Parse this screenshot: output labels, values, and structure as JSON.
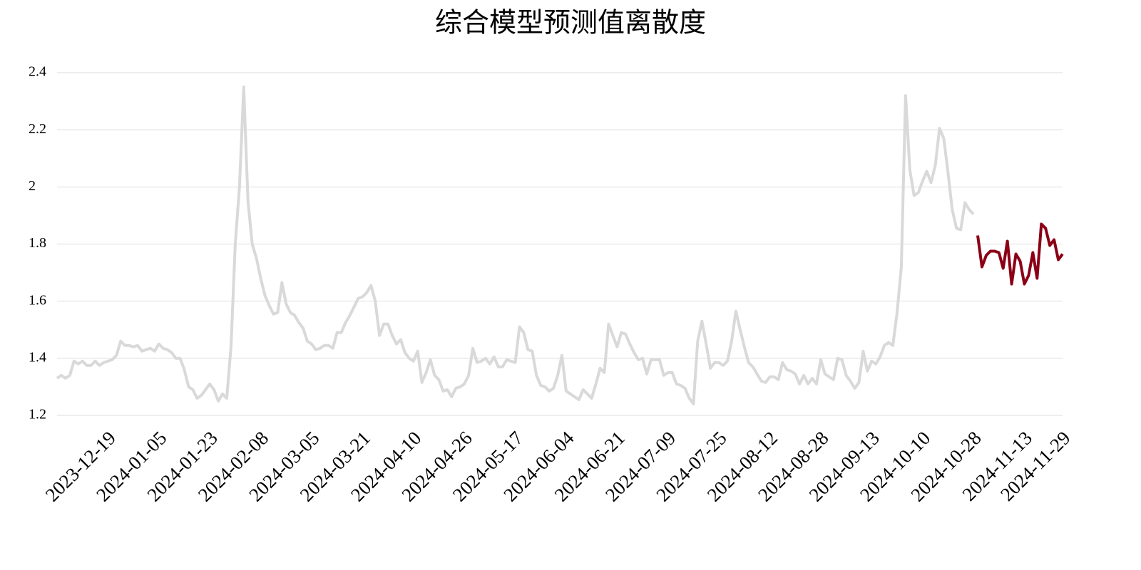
{
  "chart_data": {
    "type": "line",
    "title": "综合模型预测值离散度",
    "categories": [
      null,
      null,
      null,
      null,
      null,
      null,
      null,
      null,
      null,
      null,
      null,
      null,
      "2023-12-19",
      null,
      null,
      null,
      null,
      null,
      null,
      null,
      null,
      null,
      null,
      null,
      "2024-01-05",
      null,
      null,
      null,
      null,
      null,
      null,
      null,
      null,
      null,
      null,
      null,
      "2024-01-23",
      null,
      null,
      null,
      null,
      null,
      null,
      null,
      null,
      null,
      null,
      null,
      "2024-02-08",
      null,
      null,
      null,
      null,
      null,
      null,
      null,
      null,
      null,
      null,
      null,
      "2024-03-05",
      null,
      null,
      null,
      null,
      null,
      null,
      null,
      null,
      null,
      null,
      null,
      "2024-03-21",
      null,
      null,
      null,
      null,
      null,
      null,
      null,
      null,
      null,
      null,
      null,
      "2024-04-10",
      null,
      null,
      null,
      null,
      null,
      null,
      null,
      null,
      null,
      null,
      null,
      "2024-04-26",
      null,
      null,
      null,
      null,
      null,
      null,
      null,
      null,
      null,
      null,
      null,
      "2024-05-17",
      null,
      null,
      null,
      null,
      null,
      null,
      null,
      null,
      null,
      null,
      null,
      "2024-06-04",
      null,
      null,
      null,
      null,
      null,
      null,
      null,
      null,
      null,
      null,
      null,
      "2024-06-21",
      null,
      null,
      null,
      null,
      null,
      null,
      null,
      null,
      null,
      null,
      null,
      "2024-07-09",
      null,
      null,
      null,
      null,
      null,
      null,
      null,
      null,
      null,
      null,
      null,
      "2024-07-25",
      null,
      null,
      null,
      null,
      null,
      null,
      null,
      null,
      null,
      null,
      null,
      "2024-08-12",
      null,
      null,
      null,
      null,
      null,
      null,
      null,
      null,
      null,
      null,
      null,
      "2024-08-28",
      null,
      null,
      null,
      null,
      null,
      null,
      null,
      null,
      null,
      null,
      null,
      "2024-09-13",
      null,
      null,
      null,
      null,
      null,
      null,
      null,
      null,
      null,
      null,
      null,
      "2024-10-10",
      null,
      null,
      null,
      null,
      null,
      null,
      null,
      null,
      null,
      null,
      null,
      "2024-10-28",
      null,
      null,
      null,
      null,
      null,
      null,
      null,
      null,
      null,
      null,
      null,
      "2024-11-13",
      null,
      null,
      null,
      null,
      null,
      null,
      null,
      null,
      "2024-11-29"
    ],
    "series": [
      {
        "color": "#d9d9d9",
        "values": [
          1.33,
          1.34,
          1.33,
          1.34,
          1.39,
          1.38,
          1.39,
          1.375,
          1.375,
          1.39,
          1.375,
          1.385,
          1.39,
          1.395,
          1.41,
          1.46,
          1.445,
          1.445,
          1.44,
          1.445,
          1.425,
          1.43,
          1.435,
          1.425,
          1.45,
          1.435,
          1.43,
          1.42,
          1.4,
          1.4,
          1.36,
          1.3,
          1.29,
          1.26,
          1.27,
          1.29,
          1.31,
          1.29,
          1.25,
          1.275,
          1.26,
          1.44,
          1.8,
          2.0,
          2.35,
          1.95,
          1.8,
          1.75,
          1.68,
          1.62,
          1.585,
          1.555,
          1.56,
          1.665,
          1.59,
          1.56,
          1.55,
          1.525,
          1.505,
          1.46,
          1.45,
          1.43,
          1.435,
          1.445,
          1.445,
          1.435,
          1.49,
          1.49,
          1.525,
          1.55,
          1.58,
          1.61,
          1.615,
          1.63,
          1.655,
          1.6,
          1.48,
          1.52,
          1.52,
          1.48,
          1.45,
          1.465,
          1.42,
          1.4,
          1.39,
          1.425,
          1.315,
          1.35,
          1.395,
          1.34,
          1.325,
          1.285,
          1.29,
          1.265,
          1.295,
          1.3,
          1.31,
          1.34,
          1.435,
          1.385,
          1.39,
          1.4,
          1.38,
          1.405,
          1.37,
          1.37,
          1.395,
          1.39,
          1.385,
          1.51,
          1.49,
          1.43,
          1.425,
          1.34,
          1.305,
          1.3,
          1.285,
          1.295,
          1.34,
          1.41,
          1.285,
          1.275,
          1.265,
          1.255,
          1.29,
          1.275,
          1.26,
          1.31,
          1.365,
          1.35,
          1.52,
          1.48,
          1.44,
          1.49,
          1.485,
          1.45,
          1.42,
          1.395,
          1.4,
          1.345,
          1.395,
          1.395,
          1.395,
          1.34,
          1.35,
          1.35,
          1.31,
          1.305,
          1.295,
          1.26,
          1.24,
          1.46,
          1.53,
          1.45,
          1.365,
          1.385,
          1.385,
          1.375,
          1.39,
          1.46,
          1.565,
          1.5,
          1.44,
          1.385,
          1.37,
          1.345,
          1.32,
          1.315,
          1.335,
          1.335,
          1.325,
          1.385,
          1.36,
          1.355,
          1.345,
          1.31,
          1.34,
          1.31,
          1.33,
          1.31,
          1.395,
          1.345,
          1.335,
          1.325,
          1.4,
          1.395,
          1.34,
          1.32,
          1.295,
          1.315,
          1.425,
          1.355,
          1.39,
          1.38,
          1.405,
          1.445,
          1.455,
          1.445,
          1.56,
          1.72,
          2.32,
          2.06,
          1.97,
          1.98,
          2.02,
          2.055,
          2.015,
          2.075,
          2.205,
          2.17,
          2.05,
          1.92,
          1.855,
          1.85,
          1.945,
          1.92,
          1.905,
          null,
          null,
          null,
          null,
          null,
          null,
          null,
          null,
          null,
          null,
          null,
          null,
          null,
          null,
          null,
          null,
          null,
          null,
          null,
          null,
          null
        ]
      },
      {
        "color": "#8b0016",
        "values": [
          null,
          null,
          null,
          null,
          null,
          null,
          null,
          null,
          null,
          null,
          null,
          null,
          null,
          null,
          null,
          null,
          null,
          null,
          null,
          null,
          null,
          null,
          null,
          null,
          null,
          null,
          null,
          null,
          null,
          null,
          null,
          null,
          null,
          null,
          null,
          null,
          null,
          null,
          null,
          null,
          null,
          null,
          null,
          null,
          null,
          null,
          null,
          null,
          null,
          null,
          null,
          null,
          null,
          null,
          null,
          null,
          null,
          null,
          null,
          null,
          null,
          null,
          null,
          null,
          null,
          null,
          null,
          null,
          null,
          null,
          null,
          null,
          null,
          null,
          null,
          null,
          null,
          null,
          null,
          null,
          null,
          null,
          null,
          null,
          null,
          null,
          null,
          null,
          null,
          null,
          null,
          null,
          null,
          null,
          null,
          null,
          null,
          null,
          null,
          null,
          null,
          null,
          null,
          null,
          null,
          null,
          null,
          null,
          null,
          null,
          null,
          null,
          null,
          null,
          null,
          null,
          null,
          null,
          null,
          null,
          null,
          null,
          null,
          null,
          null,
          null,
          null,
          null,
          null,
          null,
          null,
          null,
          null,
          null,
          null,
          null,
          null,
          null,
          null,
          null,
          null,
          null,
          null,
          null,
          null,
          null,
          null,
          null,
          null,
          null,
          null,
          null,
          null,
          null,
          null,
          null,
          null,
          null,
          null,
          null,
          null,
          null,
          null,
          null,
          null,
          null,
          null,
          null,
          null,
          null,
          null,
          null,
          null,
          null,
          null,
          null,
          null,
          null,
          null,
          null,
          null,
          null,
          null,
          null,
          null,
          null,
          null,
          null,
          null,
          null,
          null,
          null,
          null,
          null,
          null,
          null,
          null,
          null,
          null,
          null,
          null,
          null,
          null,
          null,
          null,
          null,
          null,
          null,
          null,
          null,
          null,
          null,
          null,
          null,
          null,
          null,
          null,
          1.83,
          1.72,
          1.76,
          1.775,
          1.775,
          1.77,
          1.715,
          1.81,
          1.66,
          1.765,
          1.74,
          1.66,
          1.69,
          1.77,
          1.68,
          1.87,
          1.855,
          1.795,
          1.815,
          1.745,
          1.765
        ]
      }
    ],
    "ylim": [
      1.2,
      2.4
    ],
    "yticks": [
      1.2,
      1.4,
      1.6,
      1.8,
      2,
      2.2,
      2.4
    ],
    "grid": true
  }
}
